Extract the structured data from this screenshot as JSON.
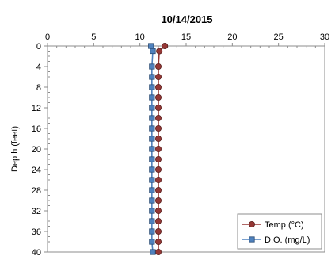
{
  "chart_data": {
    "type": "line",
    "title": "10/14/2015",
    "xlabel": "",
    "ylabel": "Depth (feet)",
    "xlim": [
      0,
      30
    ],
    "ylim": [
      0,
      40
    ],
    "y_inverted": true,
    "x_axis_position": "top",
    "x_ticks": [
      0,
      5,
      10,
      15,
      20,
      25,
      30
    ],
    "y_ticks": [
      0,
      4,
      8,
      12,
      16,
      20,
      24,
      28,
      32,
      36,
      40
    ],
    "grid": false,
    "legend_position": "bottom-right",
    "series": [
      {
        "name": "Temp (°C)",
        "color": "#953735",
        "marker": "circle",
        "points": [
          {
            "x": 12.7,
            "y": 0
          },
          {
            "x": 12.1,
            "y": 1
          },
          {
            "x": 12.0,
            "y": 4
          },
          {
            "x": 12.0,
            "y": 6
          },
          {
            "x": 12.0,
            "y": 8
          },
          {
            "x": 12.0,
            "y": 10
          },
          {
            "x": 12.0,
            "y": 12
          },
          {
            "x": 12.0,
            "y": 14
          },
          {
            "x": 12.0,
            "y": 16
          },
          {
            "x": 12.0,
            "y": 18
          },
          {
            "x": 12.0,
            "y": 20
          },
          {
            "x": 12.0,
            "y": 22
          },
          {
            "x": 12.0,
            "y": 24
          },
          {
            "x": 12.0,
            "y": 26
          },
          {
            "x": 12.0,
            "y": 28
          },
          {
            "x": 12.0,
            "y": 30
          },
          {
            "x": 12.0,
            "y": 32
          },
          {
            "x": 12.0,
            "y": 34
          },
          {
            "x": 12.0,
            "y": 36
          },
          {
            "x": 12.0,
            "y": 38
          },
          {
            "x": 12.0,
            "y": 40
          }
        ]
      },
      {
        "name": "D.O. (mg/L)",
        "color": "#4f81bd",
        "marker": "square",
        "points": [
          {
            "x": 11.2,
            "y": 0
          },
          {
            "x": 11.4,
            "y": 1
          },
          {
            "x": 11.3,
            "y": 4
          },
          {
            "x": 11.3,
            "y": 6
          },
          {
            "x": 11.3,
            "y": 8
          },
          {
            "x": 11.3,
            "y": 10
          },
          {
            "x": 11.3,
            "y": 12
          },
          {
            "x": 11.3,
            "y": 14
          },
          {
            "x": 11.3,
            "y": 16
          },
          {
            "x": 11.3,
            "y": 18
          },
          {
            "x": 11.3,
            "y": 20
          },
          {
            "x": 11.3,
            "y": 22
          },
          {
            "x": 11.3,
            "y": 24
          },
          {
            "x": 11.3,
            "y": 26
          },
          {
            "x": 11.3,
            "y": 28
          },
          {
            "x": 11.3,
            "y": 30
          },
          {
            "x": 11.3,
            "y": 32
          },
          {
            "x": 11.3,
            "y": 34
          },
          {
            "x": 11.3,
            "y": 36
          },
          {
            "x": 11.3,
            "y": 38
          },
          {
            "x": 11.4,
            "y": 40
          }
        ]
      }
    ]
  }
}
